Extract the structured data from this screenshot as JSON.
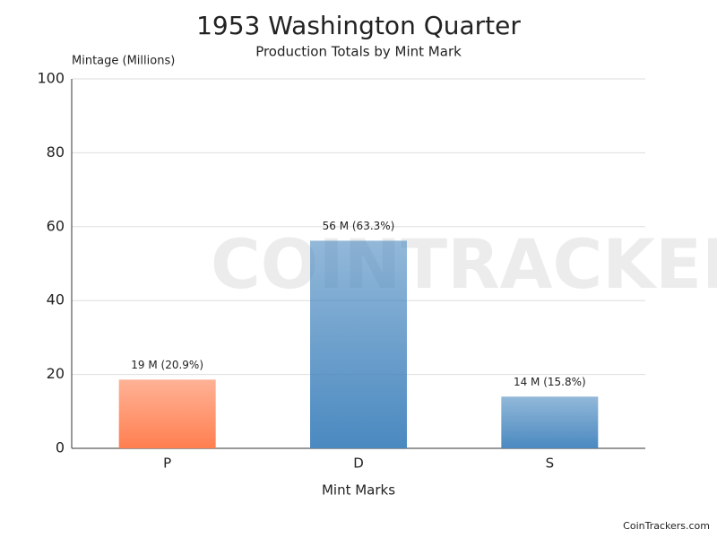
{
  "chart_data": {
    "type": "bar",
    "title": "1953 Washington Quarter",
    "subtitle": "Production Totals by Mint Mark",
    "y_label": "Mintage (Millions)",
    "x_label": "Mint Marks",
    "watermark": "COINTRACKERS",
    "source": "CoinTrackers.com",
    "categories": [
      "P",
      "D",
      "S"
    ],
    "values": [
      18.6,
      56.2,
      14.0
    ],
    "value_labels": [
      "19 M (20.9%)",
      "56 M (63.3%)",
      "14 M (15.8%)"
    ],
    "colors": [
      "#ff7f50",
      "#4a89c0",
      "#4a89c0"
    ],
    "ylim": [
      0,
      100
    ],
    "yticks": [
      0,
      20,
      40,
      60,
      80,
      100
    ],
    "grid": true
  }
}
